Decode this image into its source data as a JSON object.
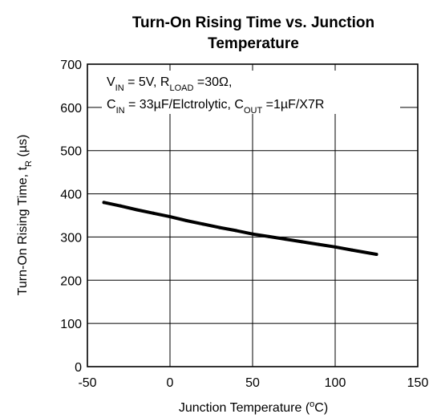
{
  "chart_data": {
    "type": "line",
    "title_line1": "Turn-On Rising Time vs. Junction",
    "title_line2": "Temperature",
    "xlabel": {
      "main": "Junction Temperature (",
      "sup": "o",
      "tail": "C)"
    },
    "ylabel": {
      "main": "Turn-On Rising Time, t",
      "sub": "R",
      "tail": " (µs)"
    },
    "xlim": [
      -50,
      150
    ],
    "ylim": [
      0,
      700
    ],
    "x_ticks": [
      -50,
      0,
      50,
      100,
      150
    ],
    "x_tick_labels": [
      "-50",
      "0",
      "50",
      "100",
      "150"
    ],
    "y_ticks": [
      0,
      100,
      200,
      300,
      400,
      500,
      600,
      700
    ],
    "y_tick_labels": [
      "0",
      "100",
      "200",
      "300",
      "400",
      "500",
      "600",
      "700"
    ],
    "grid": true,
    "annotation": {
      "line1": [
        {
          "t": "V"
        },
        {
          "t": "IN",
          "sub": true
        },
        {
          "t": " = 5V, R"
        },
        {
          "t": "LOAD",
          "sub": true
        },
        {
          "t": " =30Ω,"
        }
      ],
      "line2": [
        {
          "t": "C"
        },
        {
          "t": "IN",
          "sub": true
        },
        {
          "t": " = 33µF/Elctrolytic, C"
        },
        {
          "t": "OUT",
          "sub": true
        },
        {
          "t": " =1µF/X7R"
        }
      ]
    },
    "series": [
      {
        "x": [
          -40,
          -30,
          -20,
          -10,
          0,
          10,
          20,
          30,
          40,
          50,
          60,
          70,
          80,
          90,
          100,
          110,
          125
        ],
        "values": [
          380,
          372,
          363,
          355,
          347,
          338,
          330,
          322,
          315,
          307,
          301,
          295,
          289,
          283,
          277,
          270,
          260
        ]
      }
    ]
  }
}
